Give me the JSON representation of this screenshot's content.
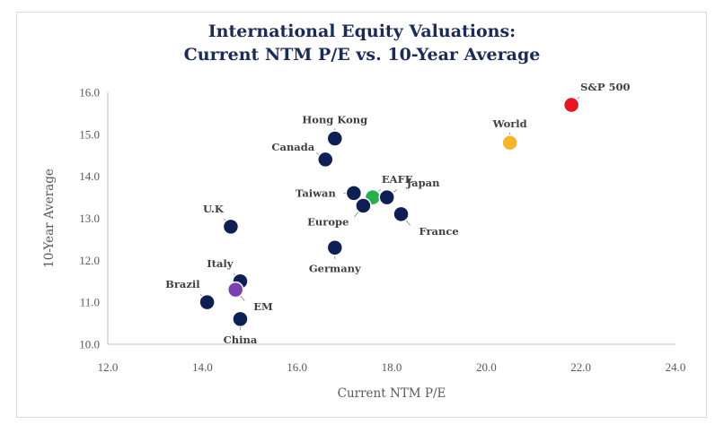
{
  "chart_data": {
    "type": "scatter",
    "title_line1": "International Equity Valuations:",
    "title_line2": "Current NTM P/E vs. 10-Year Average",
    "xlabel": "Current NTM P/E",
    "ylabel": "10-Year Average",
    "xlim": [
      12.0,
      24.0
    ],
    "ylim": [
      10.0,
      16.0
    ],
    "x_ticks": [
      "12.0",
      "14.0",
      "16.0",
      "18.0",
      "20.0",
      "22.0",
      "24.0"
    ],
    "y_ticks": [
      "10.0",
      "11.0",
      "12.0",
      "13.0",
      "14.0",
      "15.0",
      "16.0"
    ],
    "grid": false,
    "points": [
      {
        "label": "S&P 500",
        "x": 21.8,
        "y": 15.7,
        "color": "#e8141e",
        "label_pos": "above-right"
      },
      {
        "label": "World",
        "x": 20.5,
        "y": 14.8,
        "color": "#f5b526",
        "label_pos": "above"
      },
      {
        "label": "Hong Kong",
        "x": 16.8,
        "y": 14.9,
        "color": "#0d1f55",
        "label_pos": "above"
      },
      {
        "label": "Canada",
        "x": 16.6,
        "y": 14.4,
        "color": "#0d1f55",
        "label_pos": "left-up"
      },
      {
        "label": "EAFE",
        "x": 17.6,
        "y": 13.5,
        "color": "#26b04b",
        "label_pos": "above-right"
      },
      {
        "label": "Taiwan",
        "x": 17.2,
        "y": 13.6,
        "color": "#0d1f55",
        "label_pos": "left"
      },
      {
        "label": "Japan",
        "x": 17.9,
        "y": 13.5,
        "color": "#0d1f55",
        "label_pos": "right-up"
      },
      {
        "label": "Europe",
        "x": 17.4,
        "y": 13.3,
        "color": "#0d1f55",
        "label_pos": "left-down"
      },
      {
        "label": "France",
        "x": 18.2,
        "y": 13.1,
        "color": "#0d1f55",
        "label_pos": "right-down"
      },
      {
        "label": "U.K",
        "x": 14.6,
        "y": 12.8,
        "color": "#0d1f55",
        "label_pos": "above-left"
      },
      {
        "label": "Germany",
        "x": 16.8,
        "y": 12.3,
        "color": "#0d1f55",
        "label_pos": "below"
      },
      {
        "label": "Italy",
        "x": 14.8,
        "y": 11.5,
        "color": "#0d1f55",
        "label_pos": "above-left"
      },
      {
        "label": "Brazil",
        "x": 14.1,
        "y": 11.0,
        "color": "#0d1f55",
        "label_pos": "above-left"
      },
      {
        "label": "EM",
        "x": 14.7,
        "y": 11.3,
        "color": "#7a3fb0",
        "label_pos": "right-down"
      },
      {
        "label": "China",
        "x": 14.8,
        "y": 10.6,
        "color": "#0d1f55",
        "label_pos": "below"
      }
    ]
  }
}
